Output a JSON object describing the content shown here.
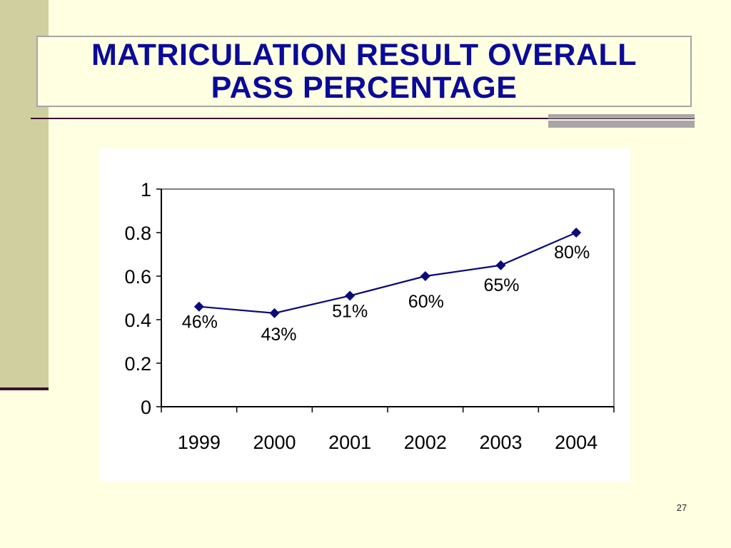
{
  "slide": {
    "title_line1": "MATRICULATION RESULT OVERALL",
    "title_line2": "PASS PERCENTAGE",
    "page_number": "27"
  },
  "colors": {
    "background": "#FFFFE1",
    "title_text": "#0A0A9A",
    "series_line": "#0A0A7A",
    "side_bar": "#CFCFA0",
    "rule": "#3D1030"
  },
  "chart_data": {
    "type": "line",
    "title": "",
    "xlabel": "",
    "ylabel": "",
    "categories": [
      "1999",
      "2000",
      "2001",
      "2002",
      "2003",
      "2004"
    ],
    "series": [
      {
        "values": [
          0.46,
          0.43,
          0.51,
          0.6,
          0.65,
          0.8
        ],
        "data_labels": [
          "46%",
          "43%",
          "51%",
          "60%",
          "65%",
          "80%"
        ],
        "marker": "diamond"
      }
    ],
    "ylim": [
      0,
      1
    ],
    "yticks": [
      0,
      0.2,
      0.4,
      0.6,
      0.8,
      1
    ],
    "ytick_labels": [
      "0",
      "0.2",
      "0.4",
      "0.6",
      "0.8",
      "1"
    ],
    "grid": false,
    "legend": "none"
  }
}
